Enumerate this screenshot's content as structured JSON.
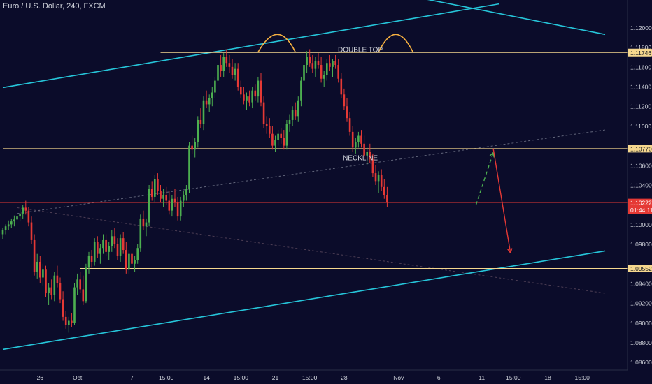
{
  "header": {
    "title": "Euro / U.S. Dollar, 240, FXCM"
  },
  "colors": {
    "background": "#0b0c2a",
    "up": "#4caf50",
    "down": "#e53935",
    "channel": "#26c6da",
    "level": "#f5d78e",
    "current_price": "#e53935",
    "projection_up": "#4caf50",
    "projection_down": "#e53935",
    "axis_text": "#d1d4dc"
  },
  "chart_data": {
    "type": "candlestick",
    "symbol": "Euro / U.S. Dollar, 240, FXCM",
    "ylim": [
      1.0852,
      1.1228
    ],
    "y_ticks": [
      "1.12000",
      "1.11800",
      "1.11600",
      "1.11400",
      "1.11200",
      "1.11000",
      "1.10600",
      "1.10400",
      "1.10000",
      "1.09800",
      "1.09400",
      "1.09200",
      "1.09000",
      "1.08800",
      "1.08600"
    ],
    "x_ticks": [
      "26",
      "Oct",
      "7",
      "15:00",
      "14",
      "15:00",
      "21",
      "15:00",
      "28",
      "Nov",
      "6",
      "11",
      "15:00",
      "18",
      "15:00"
    ],
    "x_ticks_index": [
      13,
      26,
      45,
      57,
      71,
      83,
      95,
      107,
      119,
      138,
      152,
      167,
      178,
      190,
      202
    ],
    "price_labels": [
      {
        "value": 1.11746,
        "text": "1.11746",
        "kind": "level"
      },
      {
        "value": 1.1077,
        "text": "1.10770",
        "kind": "level"
      },
      {
        "value": 1.10222,
        "text": "1.10222",
        "kind": "current",
        "countdown": "01:44:11"
      },
      {
        "value": 1.09552,
        "text": "1.09552",
        "kind": "level"
      }
    ],
    "horizontal_levels": [
      {
        "value": 1.11746,
        "from": 55,
        "to": 210
      },
      {
        "value": 1.1077,
        "from": 0,
        "to": 210
      },
      {
        "value": 1.09552,
        "from": 27,
        "to": 210
      }
    ],
    "current_price": 1.10222,
    "channel_lines": [
      {
        "from": [
          0,
          1.1139
        ],
        "to": [
          173,
          1.1224
        ]
      },
      {
        "from": [
          0,
          1.0873
        ],
        "to": [
          210,
          1.0973
        ]
      },
      {
        "from": [
          142,
          1.1232
        ],
        "to": [
          210,
          1.1193
        ]
      }
    ],
    "dashed_lines": [
      {
        "from": [
          5,
          1.1011
        ],
        "to": [
          210,
          1.1096
        ],
        "color": "#9aa0b0"
      },
      {
        "from": [
          5,
          1.1017
        ],
        "to": [
          210,
          1.093
        ],
        "color": "#7a6070"
      }
    ],
    "annotations": [
      {
        "text": "DOUBLE TOP",
        "x": 121,
        "y": 1.1178
      },
      {
        "text": "NECKLINE",
        "x": 121,
        "y": 1.1068
      }
    ],
    "arcs": [
      {
        "from": [
          89,
          1.1175
        ],
        "peak": [
          96,
          1.1193
        ],
        "to": [
          102,
          1.1175
        ]
      },
      {
        "from": [
          131,
          1.1175
        ],
        "peak": [
          137,
          1.1193
        ],
        "to": [
          143,
          1.1175
        ]
      }
    ],
    "projections": [
      {
        "from": [
          165,
          1.102
        ],
        "to": [
          171,
          1.1073
        ],
        "style": "dashed",
        "color": "#4caf50"
      },
      {
        "from": [
          171,
          1.1077
        ],
        "to": [
          177,
          1.0971
        ],
        "style": "solid",
        "color": "#e53935"
      }
    ],
    "candles_x0": 0,
    "candles_start": 1.099,
    "candles": [
      [
        1.099,
        1.0996,
        1.0985,
        1.0994
      ],
      [
        1.0994,
        1.1,
        1.099,
        1.0998
      ],
      [
        1.0998,
        1.1004,
        1.0994,
        1.1
      ],
      [
        1.1,
        1.1006,
        1.0996,
        1.1003
      ],
      [
        1.1003,
        1.1009,
        1.0998,
        1.1005
      ],
      [
        1.1005,
        1.1012,
        1.1,
        1.1008
      ],
      [
        1.1008,
        1.1015,
        1.1003,
        1.1011
      ],
      [
        1.1011,
        1.102,
        1.1006,
        1.1017
      ],
      [
        1.1017,
        1.1024,
        1.101,
        1.1014
      ],
      [
        1.1014,
        1.1018,
        1.0998,
        1.1002
      ],
      [
        1.1002,
        1.1008,
        1.098,
        1.0984
      ],
      [
        1.0984,
        1.099,
        1.0948,
        1.0952
      ],
      [
        1.0952,
        1.097,
        1.0945,
        1.0962
      ],
      [
        1.0962,
        1.0968,
        1.094,
        1.0946
      ],
      [
        1.0946,
        1.096,
        1.0938,
        1.0954
      ],
      [
        1.0954,
        1.0958,
        1.0926,
        1.093
      ],
      [
        1.093,
        1.094,
        1.0918,
        1.0936
      ],
      [
        1.0936,
        1.0944,
        1.0924,
        1.0928
      ],
      [
        1.0928,
        1.0952,
        1.0922,
        1.0948
      ],
      [
        1.0948,
        1.0958,
        1.0936,
        1.094
      ],
      [
        1.094,
        1.0946,
        1.092,
        1.0924
      ],
      [
        1.0924,
        1.0932,
        1.0902,
        1.0906
      ],
      [
        1.0906,
        1.0912,
        1.0894,
        1.0898
      ],
      [
        1.0898,
        1.0906,
        1.089,
        1.0902
      ],
      [
        1.0902,
        1.091,
        1.0896,
        1.09
      ],
      [
        1.09,
        1.094,
        1.0898,
        1.0936
      ],
      [
        1.0936,
        1.095,
        1.0928,
        1.0944
      ],
      [
        1.0944,
        1.0952,
        1.093,
        1.0934
      ],
      [
        1.0934,
        1.0948,
        1.0918,
        1.0922
      ],
      [
        1.0922,
        1.096,
        1.092,
        1.0956
      ],
      [
        1.0956,
        1.0972,
        1.095,
        1.0968
      ],
      [
        1.0968,
        1.0974,
        1.0956,
        1.0962
      ],
      [
        1.0962,
        1.0986,
        1.0958,
        1.0982
      ],
      [
        1.0982,
        1.0988,
        1.0966,
        1.097
      ],
      [
        1.097,
        1.098,
        1.096,
        1.0976
      ],
      [
        1.0976,
        1.099,
        1.097,
        1.0984
      ],
      [
        1.0984,
        1.099,
        1.0968,
        1.0972
      ],
      [
        1.0972,
        1.0982,
        1.0964,
        1.0978
      ],
      [
        1.0978,
        1.0994,
        1.0972,
        1.0988
      ],
      [
        1.0988,
        1.0996,
        1.0976,
        1.098
      ],
      [
        1.098,
        1.0986,
        1.0964,
        1.0968
      ],
      [
        1.0968,
        1.099,
        1.0962,
        1.0986
      ],
      [
        1.0986,
        1.0992,
        1.097,
        1.0974
      ],
      [
        1.0974,
        1.0982,
        1.095,
        1.0954
      ],
      [
        1.0954,
        1.0974,
        1.095,
        1.097
      ],
      [
        1.097,
        1.0976,
        1.0956,
        1.096
      ],
      [
        1.096,
        1.0968,
        1.0952,
        1.0964
      ],
      [
        1.0964,
        1.098,
        1.096,
        1.0976
      ],
      [
        1.0976,
        1.101,
        1.0972,
        1.1006
      ],
      [
        1.1006,
        1.1014,
        1.0994,
        1.0998
      ],
      [
        1.0998,
        1.1006,
        1.0988,
        1.1002
      ],
      [
        1.1002,
        1.104,
        1.0998,
        1.1036
      ],
      [
        1.1036,
        1.1044,
        1.1024,
        1.1028
      ],
      [
        1.1028,
        1.105,
        1.1022,
        1.1046
      ],
      [
        1.1046,
        1.1052,
        1.103,
        1.1034
      ],
      [
        1.1034,
        1.104,
        1.1022,
        1.1026
      ],
      [
        1.1026,
        1.1036,
        1.1018,
        1.103
      ],
      [
        1.103,
        1.1038,
        1.102,
        1.1024
      ],
      [
        1.1024,
        1.1034,
        1.101,
        1.1014
      ],
      [
        1.1014,
        1.103,
        1.1008,
        1.1026
      ],
      [
        1.1026,
        1.1036,
        1.1018,
        1.1022
      ],
      [
        1.1022,
        1.1028,
        1.1004,
        1.1008
      ],
      [
        1.1008,
        1.1028,
        1.1004,
        1.1024
      ],
      [
        1.1024,
        1.1034,
        1.1018,
        1.103
      ],
      [
        1.103,
        1.104,
        1.1024,
        1.1036
      ],
      [
        1.1036,
        1.1084,
        1.1032,
        1.108
      ],
      [
        1.108,
        1.109,
        1.1072,
        1.1076
      ],
      [
        1.1076,
        1.1088,
        1.1068,
        1.1084
      ],
      [
        1.1084,
        1.111,
        1.1078,
        1.1106
      ],
      [
        1.1106,
        1.1118,
        1.1098,
        1.1102
      ],
      [
        1.1102,
        1.113,
        1.1096,
        1.1126
      ],
      [
        1.1126,
        1.1136,
        1.1118,
        1.1122
      ],
      [
        1.1122,
        1.1132,
        1.1114,
        1.1128
      ],
      [
        1.1128,
        1.114,
        1.112,
        1.1134
      ],
      [
        1.1134,
        1.115,
        1.1128,
        1.1146
      ],
      [
        1.1146,
        1.1166,
        1.114,
        1.1162
      ],
      [
        1.1162,
        1.1172,
        1.115,
        1.1156
      ],
      [
        1.1156,
        1.1174,
        1.115,
        1.117
      ],
      [
        1.117,
        1.1178,
        1.116,
        1.1164
      ],
      [
        1.1164,
        1.1172,
        1.1154,
        1.116
      ],
      [
        1.116,
        1.1168,
        1.1148,
        1.1152
      ],
      [
        1.1152,
        1.1164,
        1.1146,
        1.1158
      ],
      [
        1.1158,
        1.1164,
        1.1136,
        1.114
      ],
      [
        1.114,
        1.1146,
        1.1128,
        1.1132
      ],
      [
        1.1132,
        1.114,
        1.1122,
        1.1126
      ],
      [
        1.1126,
        1.1134,
        1.1116,
        1.113
      ],
      [
        1.113,
        1.1136,
        1.112,
        1.1124
      ],
      [
        1.1124,
        1.114,
        1.1118,
        1.1136
      ],
      [
        1.1136,
        1.1142,
        1.1126,
        1.113
      ],
      [
        1.113,
        1.115,
        1.1124,
        1.1146
      ],
      [
        1.1146,
        1.1154,
        1.112,
        1.1124
      ],
      [
        1.1124,
        1.113,
        1.1098,
        1.1102
      ],
      [
        1.1102,
        1.111,
        1.1092,
        1.11
      ],
      [
        1.11,
        1.1108,
        1.1088,
        1.1092
      ],
      [
        1.1092,
        1.11,
        1.1076,
        1.108
      ],
      [
        1.108,
        1.109,
        1.1074,
        1.1086
      ],
      [
        1.1086,
        1.1096,
        1.108,
        1.1092
      ],
      [
        1.1092,
        1.1098,
        1.1082,
        1.1088
      ],
      [
        1.1088,
        1.1096,
        1.1076,
        1.108
      ],
      [
        1.108,
        1.1106,
        1.1076,
        1.1102
      ],
      [
        1.1102,
        1.1112,
        1.1094,
        1.1106
      ],
      [
        1.1106,
        1.112,
        1.11,
        1.1116
      ],
      [
        1.1116,
        1.1124,
        1.1106,
        1.111
      ],
      [
        1.111,
        1.113,
        1.1104,
        1.1126
      ],
      [
        1.1126,
        1.115,
        1.112,
        1.1146
      ],
      [
        1.1146,
        1.1166,
        1.114,
        1.1162
      ],
      [
        1.1162,
        1.1176,
        1.1154,
        1.117
      ],
      [
        1.117,
        1.1178,
        1.116,
        1.1164
      ],
      [
        1.1164,
        1.1172,
        1.1154,
        1.1158
      ],
      [
        1.1158,
        1.117,
        1.115,
        1.1166
      ],
      [
        1.1166,
        1.1174,
        1.1158,
        1.1162
      ],
      [
        1.1162,
        1.117,
        1.1144,
        1.1148
      ],
      [
        1.1148,
        1.1156,
        1.114,
        1.1152
      ],
      [
        1.1152,
        1.1168,
        1.1146,
        1.1164
      ],
      [
        1.1164,
        1.1172,
        1.1156,
        1.116
      ],
      [
        1.116,
        1.1168,
        1.115,
        1.1166
      ],
      [
        1.1166,
        1.1172,
        1.1158,
        1.1162
      ],
      [
        1.1162,
        1.1168,
        1.1144,
        1.1148
      ],
      [
        1.1148,
        1.1154,
        1.1128,
        1.1132
      ],
      [
        1.1132,
        1.1138,
        1.1116,
        1.112
      ],
      [
        1.112,
        1.1128,
        1.1104,
        1.1108
      ],
      [
        1.1108,
        1.1114,
        1.109,
        1.1094
      ],
      [
        1.1094,
        1.11,
        1.1074,
        1.1078
      ],
      [
        1.1078,
        1.1088,
        1.1072,
        1.1084
      ],
      [
        1.1084,
        1.1094,
        1.1078,
        1.109
      ],
      [
        1.109,
        1.1096,
        1.1078,
        1.1082
      ],
      [
        1.1082,
        1.109,
        1.1066,
        1.107
      ],
      [
        1.107,
        1.1078,
        1.106,
        1.1074
      ],
      [
        1.1074,
        1.1082,
        1.1062,
        1.1066
      ],
      [
        1.1066,
        1.1072,
        1.1048,
        1.1052
      ],
      [
        1.1052,
        1.106,
        1.104,
        1.1044
      ],
      [
        1.1044,
        1.1054,
        1.1032,
        1.105
      ],
      [
        1.105,
        1.1056,
        1.1034,
        1.1038
      ],
      [
        1.1038,
        1.1046,
        1.1026,
        1.103
      ],
      [
        1.103,
        1.1038,
        1.1018,
        1.1022
      ]
    ]
  }
}
